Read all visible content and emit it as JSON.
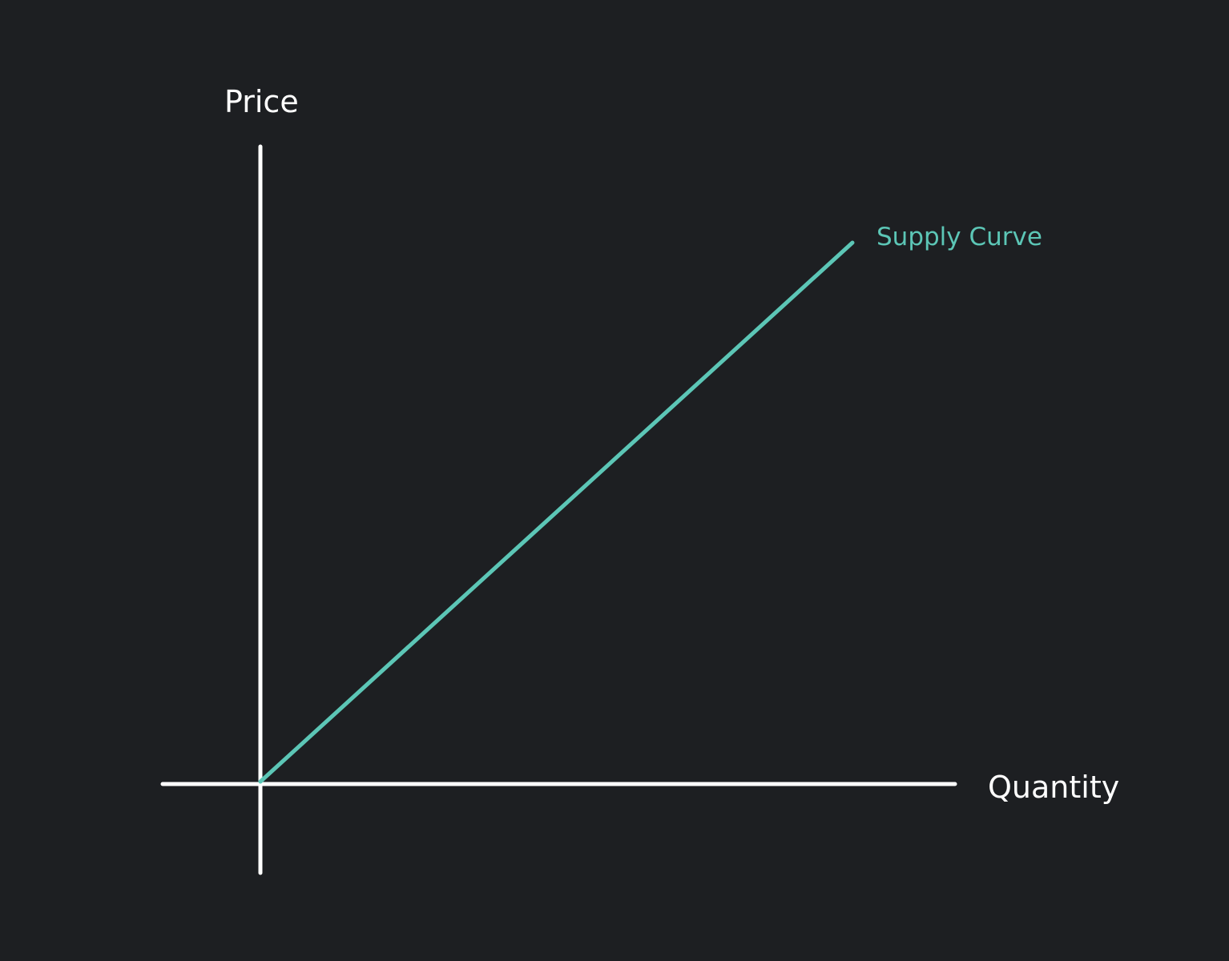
{
  "colors": {
    "background": "#1d1f22",
    "axis": "#ffffff",
    "curve": "#5cc6b6"
  },
  "chart_data": {
    "type": "line",
    "xlabel": "Quantity",
    "ylabel": "Price",
    "series": [
      {
        "name": "Supply Curve",
        "x": [
          0,
          1
        ],
        "y": [
          0,
          1
        ]
      }
    ]
  }
}
